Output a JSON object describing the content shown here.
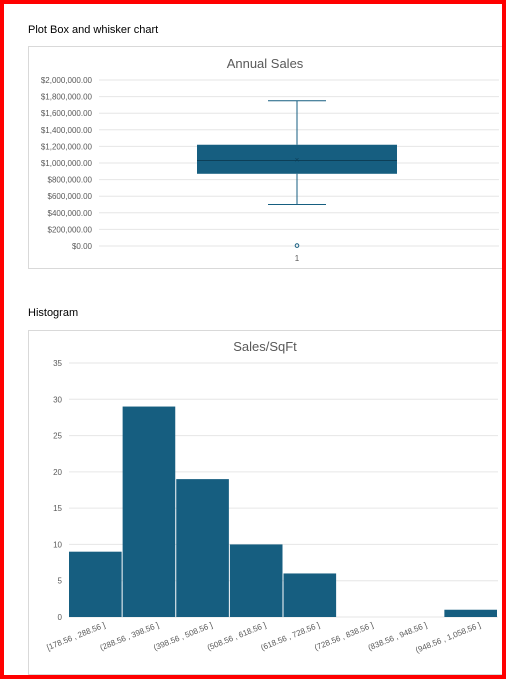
{
  "labels": {
    "boxplot_section": "Plot Box and whisker chart",
    "histogram_section": "Histogram"
  },
  "colors": {
    "series": "#165e80",
    "border": "#ff0000"
  },
  "chart_data": [
    {
      "type": "box",
      "title": "Annual Sales",
      "xlabel": "",
      "ylabel": "",
      "ylim": [
        0,
        2000000
      ],
      "y_ticks": [
        0,
        200000,
        400000,
        600000,
        800000,
        1000000,
        1200000,
        1400000,
        1600000,
        1800000,
        2000000
      ],
      "y_tick_labels": [
        "$0.00",
        "$200,000.00",
        "$400,000.00",
        "$600,000.00",
        "$800,000.00",
        "$1,000,000.00",
        "$1,200,000.00",
        "$1,400,000.00",
        "$1,600,000.00",
        "$1,800,000.00",
        "$2,000,000.00"
      ],
      "categories": [
        "1"
      ],
      "whisker_low": 500000,
      "q1": 870000,
      "median": 1030000,
      "mean": 1040000,
      "q3": 1220000,
      "whisker_high": 1750000,
      "outliers": [
        5000
      ],
      "grid": true,
      "legend": "none"
    },
    {
      "type": "bar",
      "title": "Sales/SqFt",
      "xlabel": "",
      "ylabel": "",
      "ylim": [
        0,
        35
      ],
      "y_ticks": [
        0,
        5,
        10,
        15,
        20,
        25,
        30,
        35
      ],
      "categories": [
        "[178.56 , 288.56 ]",
        "(288.56 , 398.56 ]",
        "(398.56 , 508.56 ]",
        "(508.56 , 618.56 ]",
        "(618.56 , 728.56 ]",
        "(728.56 , 838.56 ]",
        "(838.56 , 948.56 ]",
        "(948.56 , 1,058.56 ]"
      ],
      "values": [
        9,
        29,
        19,
        10,
        6,
        0,
        0,
        1
      ],
      "grid": true,
      "legend": "none"
    }
  ]
}
